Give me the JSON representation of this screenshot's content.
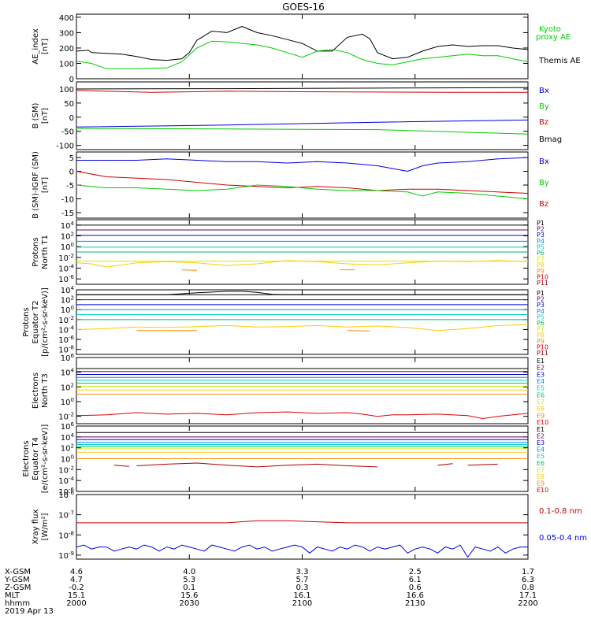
{
  "title": "GOES-16",
  "colors": {
    "black": "#000000",
    "green": "#00cc00",
    "blue": "#0000dd",
    "red": "#cc0000",
    "P": [
      "#000000",
      "#660066",
      "#0000cc",
      "#0088ff",
      "#00cccc",
      "#00bb66",
      "#ccee00",
      "#ffcc00",
      "#ff8800",
      "#dd0000",
      "#aa0000"
    ],
    "E": [
      "#000000",
      "#660066",
      "#0000cc",
      "#0088ff",
      "#00cccc",
      "#00bb66",
      "#ccee00",
      "#ffcc00",
      "#ff8800",
      "#dd0000",
      "#aa0000"
    ]
  },
  "chart_data": [
    {
      "type": "line",
      "ylabel": [
        "AE_index",
        "[nT]"
      ],
      "yticks": [
        "400",
        "300",
        "200",
        "100",
        "0"
      ],
      "ylim": [
        0,
        420
      ],
      "series": [
        {
          "name": "Themis AE",
          "color": "black",
          "x": [
            0,
            8,
            10,
            30,
            40,
            50,
            60,
            70,
            75,
            80,
            90,
            100,
            110,
            120,
            130,
            140,
            150,
            160,
            170,
            180,
            190,
            195,
            200,
            210,
            220,
            230,
            240,
            250,
            260,
            270,
            280,
            290,
            300
          ],
          "y": [
            180,
            185,
            170,
            160,
            145,
            125,
            120,
            130,
            170,
            250,
            310,
            300,
            340,
            300,
            280,
            255,
            230,
            180,
            180,
            270,
            290,
            260,
            170,
            130,
            140,
            180,
            210,
            220,
            210,
            215,
            215,
            200,
            190
          ]
        },
        {
          "name": "Kyoto proxy AE",
          "color": "green",
          "x": [
            0,
            10,
            20,
            40,
            60,
            70,
            80,
            90,
            100,
            110,
            120,
            130,
            140,
            150,
            160,
            170,
            180,
            190,
            200,
            210,
            220,
            230,
            240,
            250,
            260,
            270,
            280,
            290,
            300
          ],
          "y": [
            115,
            100,
            65,
            65,
            70,
            110,
            200,
            245,
            240,
            230,
            220,
            200,
            170,
            140,
            180,
            190,
            170,
            125,
            100,
            90,
            110,
            130,
            140,
            150,
            160,
            150,
            150,
            130,
            110
          ]
        }
      ],
      "legend": [
        {
          "text": "Kyoto",
          "color": "green"
        },
        {
          "text": "proxy AE",
          "color": "green"
        },
        {
          "text": "Themis AE",
          "color": "black"
        }
      ]
    },
    {
      "type": "line",
      "ylabel": [
        "B (SM)",
        "[nT]"
      ],
      "yticks": [
        "100",
        "50",
        "0",
        "-50",
        "-100"
      ],
      "ylim": [
        -115,
        125
      ],
      "series": [
        {
          "name": "Bmag",
          "color": "black",
          "x": [
            0,
            100,
            200,
            300
          ],
          "y": [
            100,
            101,
            103,
            105
          ]
        },
        {
          "name": "Bz",
          "color": "red",
          "x": [
            0,
            50,
            100,
            150,
            200,
            250,
            300
          ],
          "y": [
            95,
            88,
            92,
            90,
            89,
            88,
            88
          ]
        },
        {
          "name": "Bx",
          "color": "blue",
          "x": [
            0,
            100,
            200,
            300
          ],
          "y": [
            -35,
            -28,
            -18,
            -10
          ]
        },
        {
          "name": "By",
          "color": "green",
          "x": [
            0,
            100,
            200,
            300
          ],
          "y": [
            -40,
            -42,
            -44,
            -60
          ]
        }
      ],
      "legend": [
        {
          "text": "Bx",
          "color": "blue"
        },
        {
          "text": "By",
          "color": "green"
        },
        {
          "text": "Bz",
          "color": "red"
        },
        {
          "text": "Bmag",
          "color": "black"
        }
      ]
    },
    {
      "type": "line",
      "ylabel": [
        "B (SM)-IGRF (SM)",
        "[nT]"
      ],
      "yticks": [
        "5",
        "0",
        "-5",
        "-10",
        "-15"
      ],
      "ylim": [
        -17,
        7
      ],
      "series": [
        {
          "name": "Bx",
          "color": "blue",
          "x": [
            0,
            20,
            40,
            60,
            80,
            100,
            120,
            140,
            160,
            180,
            200,
            210,
            220,
            230,
            240,
            260,
            280,
            300
          ],
          "y": [
            4,
            4,
            4,
            4.5,
            4,
            3.5,
            3.5,
            3,
            3.5,
            3,
            2,
            1,
            0,
            2,
            3,
            3.5,
            4.5,
            5
          ]
        },
        {
          "name": "Bz",
          "color": "red",
          "x": [
            0,
            20,
            40,
            60,
            80,
            100,
            120,
            140,
            160,
            180,
            200,
            220,
            240,
            260,
            280,
            300
          ],
          "y": [
            0,
            -2,
            -2.5,
            -3,
            -4,
            -5,
            -5.5,
            -6,
            -5.5,
            -6,
            -7,
            -6.5,
            -6.5,
            -7,
            -7.5,
            -8
          ]
        },
        {
          "name": "By",
          "color": "green",
          "x": [
            0,
            20,
            40,
            60,
            80,
            100,
            120,
            140,
            160,
            180,
            200,
            220,
            230,
            240,
            260,
            280,
            300
          ],
          "y": [
            -5,
            -6,
            -6,
            -6.5,
            -7,
            -6.5,
            -5,
            -5.5,
            -6.5,
            -7,
            -7,
            -7.5,
            -9,
            -7.5,
            -8,
            -9,
            -10
          ]
        }
      ],
      "legend": [
        {
          "text": "Bx",
          "color": "blue"
        },
        {
          "text": "By",
          "color": "green"
        },
        {
          "text": "Bz",
          "color": "red"
        }
      ]
    },
    {
      "type": "line",
      "ylabel": [
        "Protons",
        "North T1"
      ],
      "log": true,
      "ylim_exp": [
        -7,
        5
      ],
      "yticks": [
        "10^4",
        "10^2",
        "10^0",
        "10^-2",
        "10^-4",
        "10^-6"
      ],
      "levels": [
        4.0,
        3.1,
        2.1,
        1.0,
        -0.1,
        -1.0,
        -2.7
      ],
      "extra": [
        {
          "color_index": 7,
          "x": [
            0,
            10,
            20,
            40,
            60,
            80,
            100,
            120,
            140,
            160,
            180,
            200,
            220,
            240,
            260,
            280,
            300
          ],
          "y": [
            -3.0,
            -3.2,
            -3.8,
            -3.0,
            -2.8,
            -3.0,
            -3.5,
            -3.2,
            -2.6,
            -2.8,
            -3.2,
            -3.4,
            -3.0,
            -2.7,
            -2.8,
            -2.6,
            -2.8
          ]
        },
        {
          "color_index": 8,
          "x": [
            70,
            80
          ],
          "y": [
            -4.3,
            -4.4
          ]
        },
        {
          "color_index": 8,
          "x": [
            175,
            185
          ],
          "y": [
            -4.3,
            -4.3
          ]
        }
      ],
      "legend": [
        "P1",
        "P2",
        "P3",
        "P4",
        "P5",
        "P6",
        "P7",
        "P8",
        "P9",
        "P10",
        "P11"
      ]
    },
    {
      "type": "line",
      "ylabel": [
        "Protons",
        "Equator T2",
        "[p/(cm²-s-sr-keV)]"
      ],
      "log": true,
      "ylim_exp": [
        -9,
        4
      ],
      "yticks": [
        "10^4",
        "10^2",
        "10^0",
        "10^-2",
        "10^-4",
        "10^-6",
        "10^-8"
      ],
      "levels": [
        3.0,
        2.0,
        1.0,
        0.0,
        -1.0,
        -2.0
      ],
      "extra": [
        {
          "color_index": 0,
          "x": [
            0,
            60,
            80,
            100,
            110,
            120,
            130,
            140,
            300
          ],
          "y": [
            3.0,
            3.0,
            3.4,
            3.7,
            3.7,
            3.5,
            3.1,
            3.0,
            3.0
          ]
        },
        {
          "color_index": 7,
          "x": [
            0,
            20,
            40,
            60,
            80,
            100,
            120,
            140,
            160,
            180,
            200,
            220,
            240,
            260,
            280,
            300
          ],
          "y": [
            -4.0,
            -3.8,
            -3.5,
            -3.6,
            -3.4,
            -3.2,
            -3.5,
            -3.4,
            -3.2,
            -3.5,
            -3.3,
            -3.6,
            -4.2,
            -3.8,
            -3.2,
            -3.0
          ]
        },
        {
          "color_index": 8,
          "x": [
            40,
            80
          ],
          "y": [
            -4.2,
            -4.2
          ]
        },
        {
          "color_index": 8,
          "x": [
            180,
            195
          ],
          "y": [
            -4.2,
            -4.3
          ]
        }
      ],
      "legend": [
        "P1",
        "P2",
        "P3",
        "P4",
        "P5",
        "P6",
        "P7",
        "P8",
        "P9",
        "P10",
        "P11"
      ]
    },
    {
      "type": "line",
      "ylabel": [
        "Electrons",
        "North T3"
      ],
      "log": true,
      "ylim_exp": [
        -3,
        6
      ],
      "yticks": [
        "10^6",
        "10^4",
        "10^2",
        "10^0",
        "10^-2"
      ],
      "levels": [
        4.5,
        4.1,
        3.7,
        3.3,
        2.9,
        2.5,
        2.1,
        1.6,
        1.0
      ],
      "extra": [
        {
          "color_index": 9,
          "x": [
            0,
            20,
            40,
            60,
            80,
            100,
            120,
            140,
            160,
            180,
            190,
            200,
            210,
            220,
            240,
            260,
            270,
            280,
            290,
            300
          ],
          "y": [
            -1.9,
            -1.8,
            -1.5,
            -1.7,
            -1.6,
            -1.8,
            -1.5,
            -1.4,
            -1.6,
            -1.5,
            -1.7,
            -2.0,
            -1.8,
            -1.8,
            -1.7,
            -1.9,
            -2.3,
            -2.0,
            -1.8,
            -1.6
          ]
        }
      ],
      "legend": [
        "E1",
        "E2",
        "E3",
        "E4",
        "E5",
        "E6",
        "E7",
        "E8",
        "E9",
        "E10"
      ]
    },
    {
      "type": "line",
      "ylabel": [
        "Electrons",
        "Equator T4",
        "[e/(cm²-s-sr-keV)]"
      ],
      "log": true,
      "ylim_exp": [
        -6,
        6
      ],
      "yticks": [
        "10^6",
        "10^4",
        "10^2",
        "10^0",
        "10^-2",
        "10^-4",
        "10^-6"
      ],
      "levels": [
        4.8,
        4.0,
        3.5,
        3.0,
        2.6,
        2.2,
        1.8,
        1.2,
        0.0
      ],
      "extra": [
        {
          "color_index": 10,
          "x": [
            25,
            35
          ],
          "y": [
            -1.2,
            -1.4
          ]
        },
        {
          "color_index": 10,
          "x": [
            40,
            60,
            80,
            100,
            120,
            140,
            160,
            180,
            200
          ],
          "y": [
            -1.3,
            -1.0,
            -0.8,
            -1.2,
            -1.5,
            -1.2,
            -1.0,
            -1.3,
            -1.5
          ]
        },
        {
          "color_index": 10,
          "x": [
            240,
            250
          ],
          "y": [
            -1.2,
            -0.9
          ]
        },
        {
          "color_index": 10,
          "x": [
            260,
            280
          ],
          "y": [
            -1.2,
            -1.0
          ]
        }
      ],
      "legend": [
        "E1",
        "E2",
        "E3",
        "E4",
        "E5",
        "E6",
        "E7",
        "E8",
        "E9",
        "E10"
      ]
    },
    {
      "type": "line",
      "ylabel": [
        "Xray flux",
        "[W/m²]"
      ],
      "log": true,
      "ylim_exp": [
        -9.2,
        -6.0
      ],
      "yticks": [
        "10^-6",
        "10^-7",
        "10^-8",
        "10^-9"
      ],
      "series": [
        {
          "name": "0.1-0.8 nm",
          "color": "red",
          "x": [
            0,
            50,
            100,
            120,
            140,
            160,
            180,
            200,
            220,
            240,
            260,
            280,
            300
          ],
          "y": [
            -7.4,
            -7.4,
            -7.4,
            -7.3,
            -7.3,
            -7.35,
            -7.4,
            -7.4,
            -7.4,
            -7.4,
            -7.4,
            -7.4,
            -7.4
          ]
        },
        {
          "name": "0.05-0.4 nm",
          "color": "blue",
          "x": [
            0,
            5,
            10,
            15,
            20,
            25,
            30,
            35,
            40,
            45,
            50,
            55,
            60,
            65,
            70,
            75,
            80,
            85,
            90,
            95,
            100,
            105,
            110,
            115,
            120,
            125,
            130,
            135,
            140,
            145,
            150,
            155,
            160,
            165,
            170,
            175,
            180,
            185,
            190,
            195,
            200,
            205,
            210,
            215,
            220,
            225,
            230,
            235,
            240,
            245,
            250,
            255,
            260,
            265,
            270,
            275,
            280,
            285,
            290,
            295,
            300
          ],
          "y": [
            -8.6,
            -8.5,
            -8.7,
            -8.6,
            -8.6,
            -8.8,
            -8.7,
            -8.6,
            -8.7,
            -8.5,
            -8.6,
            -8.8,
            -8.6,
            -8.7,
            -8.5,
            -8.6,
            -8.7,
            -8.8,
            -8.5,
            -8.6,
            -8.7,
            -8.8,
            -8.6,
            -8.5,
            -8.7,
            -8.6,
            -8.8,
            -8.7,
            -8.6,
            -8.5,
            -8.6,
            -8.9,
            -8.6,
            -8.7,
            -8.8,
            -8.6,
            -8.7,
            -8.5,
            -8.6,
            -8.8,
            -8.6,
            -8.7,
            -8.6,
            -8.5,
            -8.9,
            -8.7,
            -8.6,
            -8.7,
            -8.9,
            -8.6,
            -8.7,
            -8.5,
            -9.1,
            -8.6,
            -8.7,
            -8.8,
            -8.6,
            -8.9,
            -8.7,
            -8.6,
            -8.6
          ]
        }
      ],
      "legend": [
        {
          "text": "0.1-0.8 nm",
          "color": "red"
        },
        {
          "text": "0.05-0.4 nm",
          "color": "blue"
        }
      ]
    }
  ],
  "x_axis": {
    "row_labels": [
      "X-GSM",
      "Y-GSM",
      "Z-GSM",
      "MLT",
      "hhmm"
    ],
    "date": "2019 Apr 13",
    "ticks": [
      {
        "x": 0,
        "values": [
          "4.6",
          "4.7",
          "-0.2",
          "15.1",
          "2000"
        ]
      },
      {
        "x": 75,
        "values": [
          "4.0",
          "5.3",
          "0.1",
          "15.6",
          "2030"
        ]
      },
      {
        "x": 150,
        "values": [
          "3.3",
          "5.7",
          "0.3",
          "16.1",
          "2100"
        ]
      },
      {
        "x": 225,
        "values": [
          "2.5",
          "6.1",
          "0.6",
          "16.6",
          "2130"
        ]
      },
      {
        "x": 300,
        "values": [
          "1.7",
          "6.3",
          "0.8",
          "17.1",
          "2200"
        ]
      }
    ]
  }
}
